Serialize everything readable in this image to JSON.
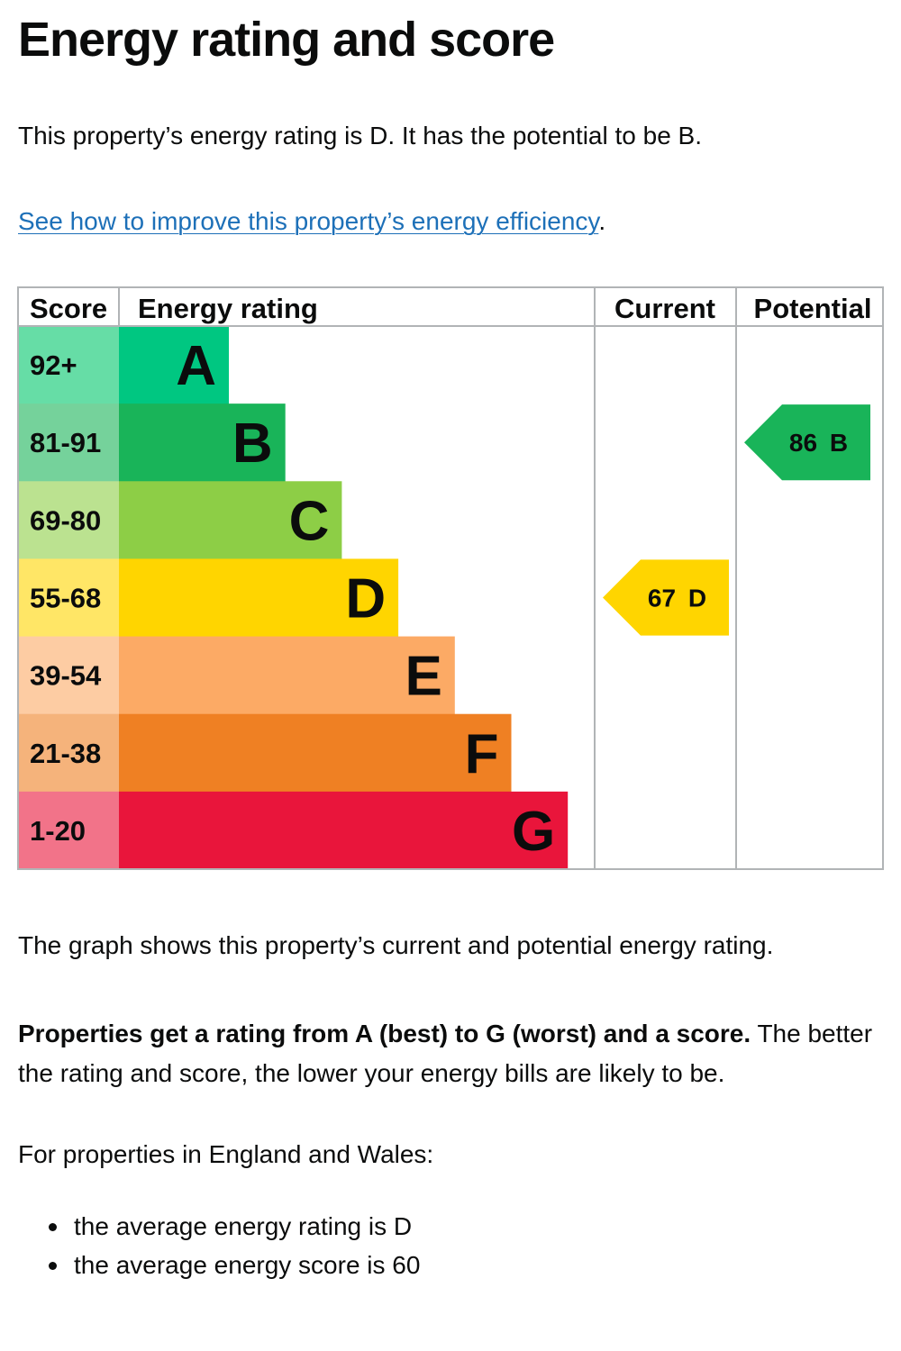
{
  "page": {
    "title": "Energy rating and score",
    "intro": "This property’s energy rating is D. It has the potential to be B.",
    "improve_link": "See how to improve this property’s energy efficiency",
    "improve_link_suffix": ".",
    "graph_caption": "The graph shows this property’s current and potential energy rating.",
    "explain_bold": "Properties get a rating from A (best) to G (worst) and a score.",
    "explain_rest": " The better the rating and score, the lower your energy bills are likely to be.",
    "region_intro": "For properties in England and Wales:",
    "averages": [
      "the average energy rating is D",
      "the average energy score is 60"
    ]
  },
  "chart_data": {
    "type": "bar",
    "headers": {
      "score": "Score",
      "rating": "Energy rating",
      "current": "Current",
      "potential": "Potential"
    },
    "bands": [
      {
        "score_range": "92+",
        "letter": "A",
        "color": "#00c781",
        "score_bg": "#66dda6"
      },
      {
        "score_range": "81-91",
        "letter": "B",
        "color": "#19b459",
        "score_bg": "#75d29b"
      },
      {
        "score_range": "69-80",
        "letter": "C",
        "color": "#8dce46",
        "score_bg": "#bbe290"
      },
      {
        "score_range": "55-68",
        "letter": "D",
        "color": "#ffd500",
        "score_bg": "#ffe666"
      },
      {
        "score_range": "39-54",
        "letter": "E",
        "color": "#fcaa65",
        "score_bg": "#fdcca3"
      },
      {
        "score_range": "21-38",
        "letter": "F",
        "color": "#ef8023",
        "score_bg": "#f5b37b"
      },
      {
        "score_range": "1-20",
        "letter": "G",
        "color": "#e9153b",
        "score_bg": "#f27389"
      }
    ],
    "current": {
      "score": 67,
      "letter": "D",
      "label": "67 D",
      "color": "#ffd500"
    },
    "potential": {
      "score": 86,
      "letter": "B",
      "label": "86 B",
      "color": "#19b459"
    }
  }
}
